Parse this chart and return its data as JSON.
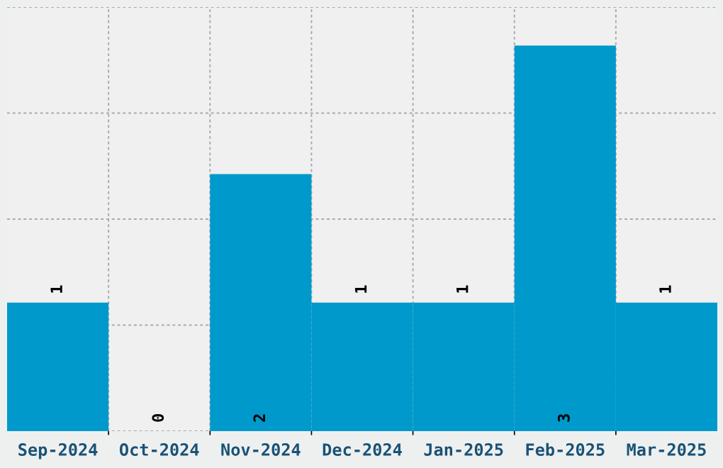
{
  "chart_data": {
    "type": "bar",
    "categories": [
      "Sep-2024",
      "Oct-2024",
      "Nov-2024",
      "Dec-2024",
      "Jan-2025",
      "Feb-2025",
      "Mar-2025"
    ],
    "values": [
      1,
      0,
      2,
      1,
      1,
      3,
      1
    ],
    "color": "#0099cc",
    "ylim": [
      0,
      3.3
    ],
    "yticks": [
      {
        "value": 0,
        "label": null
      },
      {
        "value": 0.825,
        "label": null
      },
      {
        "value": 1.65,
        "label": null
      },
      {
        "value": 2.475,
        "label": null
      },
      {
        "value": 3.3,
        "label": null
      }
    ],
    "tick_labels": "x",
    "grid": true,
    "data_labels": true
  }
}
